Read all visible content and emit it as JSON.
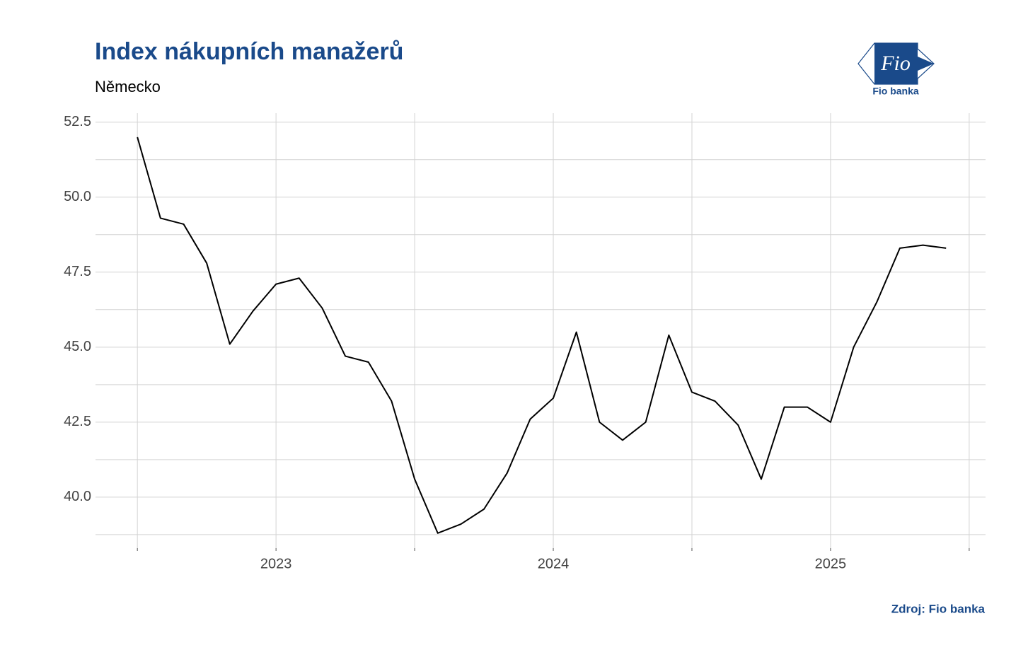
{
  "chart_data": {
    "type": "line",
    "title": "Index nákupních manažerů",
    "subtitle": "Německo",
    "source": "Zdroj: Fio banka",
    "logo": {
      "mark": "Fio",
      "name": "Fio banka"
    },
    "x": [
      2022.5,
      2022.5833,
      2022.6667,
      2022.75,
      2022.8333,
      2022.9167,
      2023,
      2023.0833,
      2023.1667,
      2023.25,
      2023.3333,
      2023.4167,
      2023.5,
      2023.5833,
      2023.6667,
      2023.75,
      2023.8333,
      2023.9167,
      2024,
      2024.0833,
      2024.1667,
      2024.25,
      2024.3333,
      2024.4167,
      2024.5,
      2024.5833,
      2024.6667,
      2024.75,
      2024.8333,
      2024.9167,
      2025,
      2025.0833,
      2025.1667,
      2025.25,
      2025.3333,
      2025.4167
    ],
    "values": [
      52.0,
      49.3,
      49.1,
      47.8,
      45.1,
      46.2,
      47.1,
      47.3,
      46.3,
      44.7,
      44.5,
      43.2,
      40.6,
      38.8,
      39.1,
      39.6,
      40.8,
      42.6,
      43.3,
      45.5,
      42.5,
      41.9,
      42.5,
      45.4,
      43.5,
      43.2,
      42.4,
      40.6,
      43.0,
      43.0,
      42.5,
      45.0,
      46.5,
      48.3,
      48.4,
      48.3
    ],
    "color": "#000000",
    "xlim": [
      2022.349,
      2025.559
    ],
    "xticks": [
      2023,
      2024,
      2025
    ],
    "x_minor_ticks": [
      2022.5,
      2023.5,
      2024.5,
      2025.5
    ],
    "ylim": [
      38.3,
      52.8
    ],
    "yticks": [
      {
        "value": 40,
        "label": "40.0"
      },
      {
        "value": 42.5,
        "label": "42.5"
      },
      {
        "value": 45,
        "label": "45.0"
      },
      {
        "value": 47.5,
        "label": "47.5"
      },
      {
        "value": 50,
        "label": "50.0"
      },
      {
        "value": 52.5,
        "label": "52.5"
      }
    ],
    "y_minor_ticks": [
      38.75,
      41.25,
      43.75,
      46.25,
      48.75,
      51.25
    ],
    "grid": true
  }
}
